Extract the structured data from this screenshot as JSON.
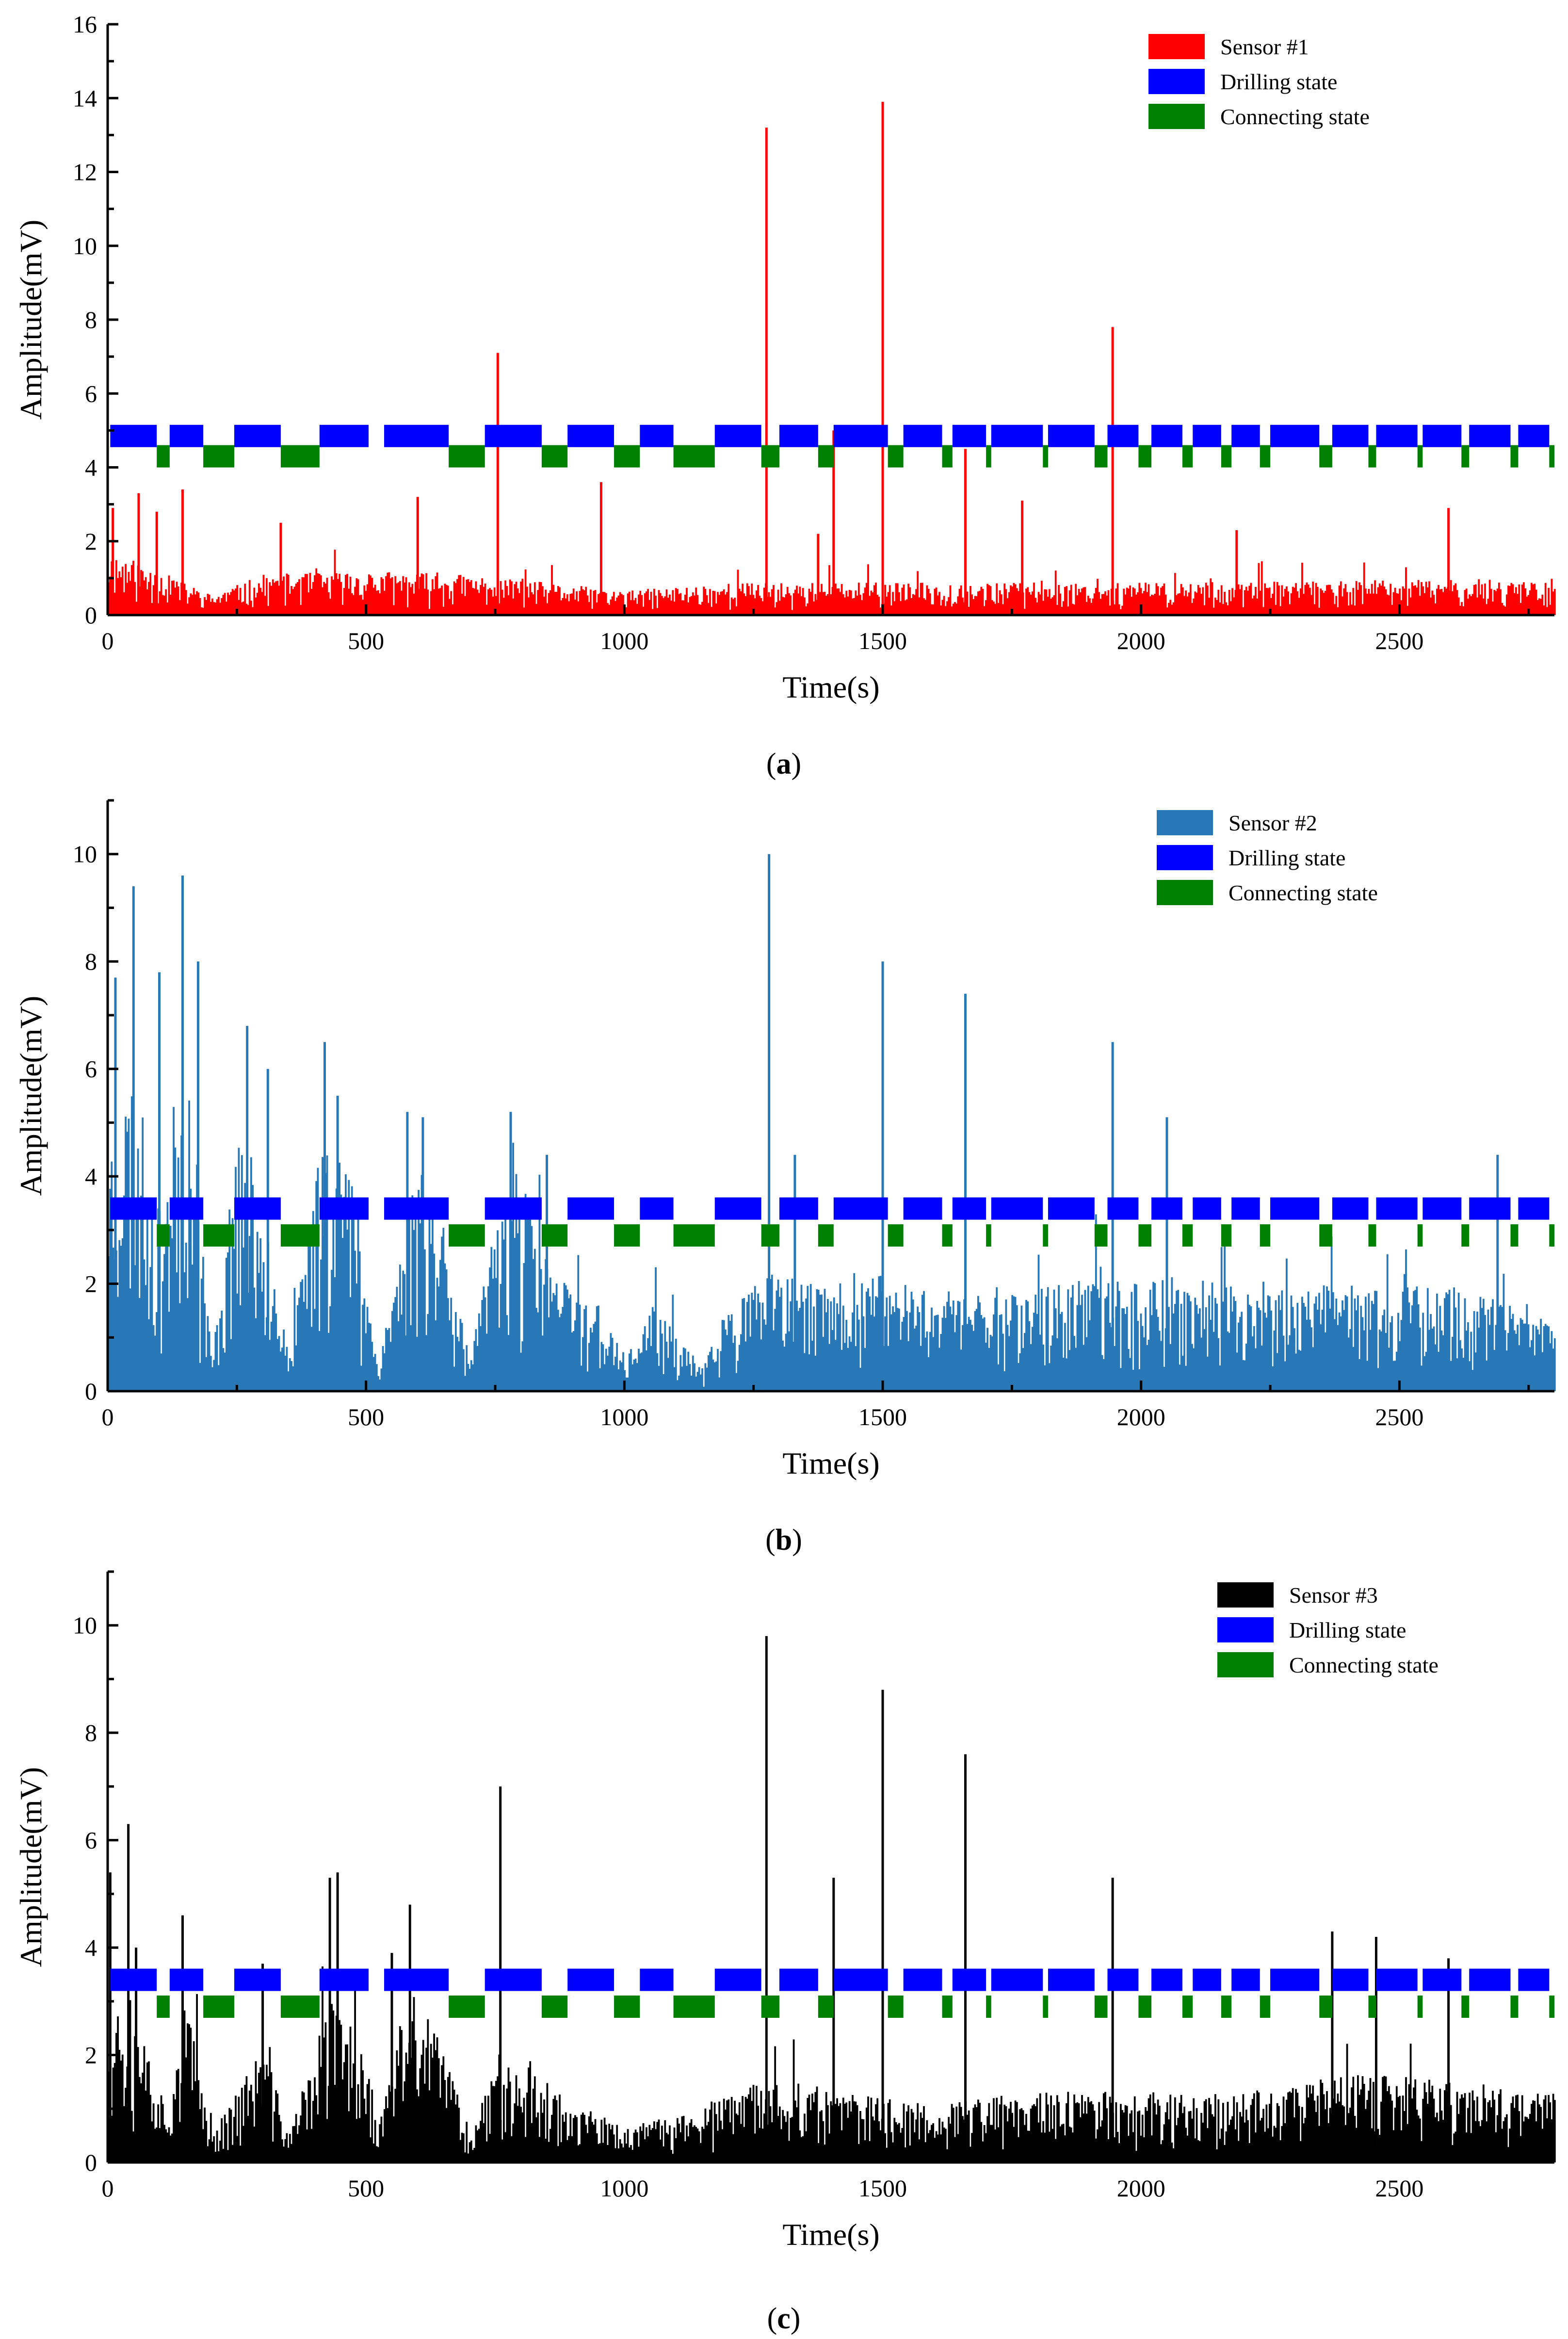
{
  "figure": {
    "panels": [
      {
        "label_open": "(",
        "label_letter": "a",
        "label_close": ")"
      },
      {
        "label_open": "(",
        "label_letter": "b",
        "label_close": ")"
      },
      {
        "label_open": "(",
        "label_letter": "c",
        "label_close": ")"
      }
    ]
  },
  "colors": {
    "sensor1": "#ff0000",
    "sensor2": "#2878b8",
    "sensor3": "#000000",
    "drilling": "#0000ff",
    "connecting": "#008000"
  },
  "chart_data": [
    {
      "type": "bar",
      "title": "",
      "xlabel": "Time(s)",
      "ylabel": "Amplitude(mV)",
      "xlim": [
        0,
        2800
      ],
      "ylim": [
        0,
        16
      ],
      "xticks": [
        0,
        500,
        1000,
        1500,
        2000,
        2500
      ],
      "yticks": [
        0,
        2,
        4,
        6,
        8,
        10,
        12,
        14,
        16
      ],
      "legend": [
        "Sensor #1",
        "Drilling state",
        "Connecting state"
      ],
      "legend_position": "top-right",
      "series": [
        {
          "name": "Sensor #1",
          "color": "#ff0000",
          "seed": 11,
          "baseline": [
            [
              0,
              1.6
            ],
            [
              80,
              1.2
            ],
            [
              200,
              0.5
            ],
            [
              300,
              1.0
            ],
            [
              500,
              1.1
            ],
            [
              700,
              1.0
            ],
            [
              1000,
              0.6
            ],
            [
              1200,
              0.8
            ],
            [
              1500,
              0.8
            ],
            [
              2000,
              0.8
            ],
            [
              2800,
              0.9
            ]
          ],
          "peaks": [
            [
              10,
              2.9
            ],
            [
              60,
              3.3
            ],
            [
              95,
              2.8
            ],
            [
              145,
              3.4
            ],
            [
              335,
              2.5
            ],
            [
              600,
              3.2
            ],
            [
              755,
              7.1
            ],
            [
              955,
              3.6
            ],
            [
              1275,
              13.2
            ],
            [
              1375,
              2.2
            ],
            [
              1405,
              5.0
            ],
            [
              1500,
              13.9
            ],
            [
              1660,
              4.5
            ],
            [
              1770,
              3.1
            ],
            [
              1945,
              7.8
            ],
            [
              2185,
              2.3
            ],
            [
              2595,
              2.9
            ]
          ]
        }
      ],
      "drilling_y": 4.85,
      "connecting_y": 4.3,
      "drilling_segments": [
        [
          5,
          95
        ],
        [
          120,
          185
        ],
        [
          245,
          335
        ],
        [
          410,
          505
        ],
        [
          535,
          660
        ],
        [
          730,
          840
        ],
        [
          890,
          980
        ],
        [
          1030,
          1095
        ],
        [
          1175,
          1265
        ],
        [
          1300,
          1375
        ],
        [
          1405,
          1510
        ],
        [
          1540,
          1615
        ],
        [
          1635,
          1700
        ],
        [
          1710,
          1810
        ],
        [
          1820,
          1910
        ],
        [
          1935,
          1995
        ],
        [
          2020,
          2080
        ],
        [
          2100,
          2155
        ],
        [
          2175,
          2230
        ],
        [
          2250,
          2345
        ],
        [
          2370,
          2440
        ],
        [
          2455,
          2535
        ],
        [
          2545,
          2620
        ],
        [
          2635,
          2715
        ],
        [
          2730,
          2790
        ]
      ],
      "connecting_segments": [
        [
          95,
          120
        ],
        [
          185,
          245
        ],
        [
          335,
          410
        ],
        [
          660,
          730
        ],
        [
          840,
          890
        ],
        [
          980,
          1030
        ],
        [
          1095,
          1175
        ],
        [
          1265,
          1300
        ],
        [
          1375,
          1405
        ],
        [
          1510,
          1540
        ],
        [
          1615,
          1635
        ],
        [
          1700,
          1710
        ],
        [
          1810,
          1820
        ],
        [
          1910,
          1935
        ],
        [
          1995,
          2020
        ],
        [
          2080,
          2100
        ],
        [
          2155,
          2175
        ],
        [
          2230,
          2250
        ],
        [
          2345,
          2370
        ],
        [
          2440,
          2455
        ],
        [
          2535,
          2545
        ],
        [
          2620,
          2635
        ],
        [
          2715,
          2730
        ],
        [
          2790,
          2800
        ]
      ]
    },
    {
      "type": "bar",
      "title": "",
      "xlabel": "Time(s)",
      "ylabel": "Amplitude(mV)",
      "xlim": [
        0,
        2800
      ],
      "ylim": [
        0,
        11
      ],
      "xticks": [
        0,
        500,
        1000,
        1500,
        2000,
        2500
      ],
      "yticks": [
        0,
        2,
        4,
        6,
        8,
        10
      ],
      "legend": [
        "Sensor #2",
        "Drilling state",
        "Connecting state"
      ],
      "legend_position": "top-right",
      "series": [
        {
          "name": "Sensor #2",
          "color": "#2878b8",
          "seed": 23,
          "baseline": [
            [
              0,
              4.5
            ],
            [
              50,
              5.5
            ],
            [
              100,
              3.0
            ],
            [
              150,
              6.5
            ],
            [
              200,
              0.5
            ],
            [
              250,
              4.5
            ],
            [
              300,
              3.5
            ],
            [
              350,
              0.5
            ],
            [
              420,
              5.0
            ],
            [
              480,
              3.5
            ],
            [
              520,
              0.5
            ],
            [
              600,
              4.0
            ],
            [
              650,
              3.0
            ],
            [
              700,
              0.5
            ],
            [
              780,
              4.5
            ],
            [
              820,
              3.0
            ],
            [
              870,
              2.0
            ],
            [
              950,
              1.5
            ],
            [
              1000,
              0.5
            ],
            [
              1050,
              1.5
            ],
            [
              1150,
              0.4
            ],
            [
              1200,
              1.5
            ],
            [
              1280,
              2.0
            ],
            [
              1400,
              1.8
            ],
            [
              1500,
              2.0
            ],
            [
              1600,
              1.8
            ],
            [
              1800,
              1.8
            ],
            [
              2000,
              2.0
            ],
            [
              2200,
              1.8
            ],
            [
              2400,
              1.8
            ],
            [
              2600,
              1.8
            ],
            [
              2800,
              1.2
            ]
          ],
          "peaks": [
            [
              15,
              7.7
            ],
            [
              50,
              9.4
            ],
            [
              100,
              7.8
            ],
            [
              145,
              9.6
            ],
            [
              175,
              8.0
            ],
            [
              270,
              6.8
            ],
            [
              310,
              6.0
            ],
            [
              420,
              6.5
            ],
            [
              445,
              5.5
            ],
            [
              580,
              5.2
            ],
            [
              610,
              5.1
            ],
            [
              780,
              5.2
            ],
            [
              850,
              4.4
            ],
            [
              1280,
              10.0
            ],
            [
              1330,
              4.4
            ],
            [
              1500,
              8.0
            ],
            [
              1660,
              7.4
            ],
            [
              1945,
              6.5
            ],
            [
              2050,
              5.1
            ],
            [
              2690,
              4.4
            ]
          ]
        }
      ],
      "drilling_y": 3.4,
      "connecting_y": 2.9,
      "drilling_segments": [
        [
          5,
          95
        ],
        [
          120,
          185
        ],
        [
          245,
          335
        ],
        [
          410,
          505
        ],
        [
          535,
          660
        ],
        [
          730,
          840
        ],
        [
          890,
          980
        ],
        [
          1030,
          1095
        ],
        [
          1175,
          1265
        ],
        [
          1300,
          1375
        ],
        [
          1405,
          1510
        ],
        [
          1540,
          1615
        ],
        [
          1635,
          1700
        ],
        [
          1710,
          1810
        ],
        [
          1820,
          1910
        ],
        [
          1935,
          1995
        ],
        [
          2020,
          2080
        ],
        [
          2100,
          2155
        ],
        [
          2175,
          2230
        ],
        [
          2250,
          2345
        ],
        [
          2370,
          2440
        ],
        [
          2455,
          2535
        ],
        [
          2545,
          2620
        ],
        [
          2635,
          2715
        ],
        [
          2730,
          2790
        ]
      ],
      "connecting_segments": [
        [
          95,
          120
        ],
        [
          185,
          245
        ],
        [
          335,
          410
        ],
        [
          660,
          730
        ],
        [
          840,
          890
        ],
        [
          980,
          1030
        ],
        [
          1095,
          1175
        ],
        [
          1265,
          1300
        ],
        [
          1375,
          1405
        ],
        [
          1510,
          1540
        ],
        [
          1615,
          1635
        ],
        [
          1700,
          1710
        ],
        [
          1810,
          1820
        ],
        [
          1910,
          1935
        ],
        [
          1995,
          2020
        ],
        [
          2080,
          2100
        ],
        [
          2155,
          2175
        ],
        [
          2230,
          2250
        ],
        [
          2345,
          2370
        ],
        [
          2440,
          2455
        ],
        [
          2535,
          2545
        ],
        [
          2620,
          2635
        ],
        [
          2715,
          2730
        ],
        [
          2790,
          2800
        ]
      ]
    },
    {
      "type": "bar",
      "title": "",
      "xlabel": "Time(s)",
      "ylabel": "Amplitude(mV)",
      "xlim": [
        0,
        2800
      ],
      "ylim": [
        0,
        11
      ],
      "xticks": [
        0,
        500,
        1000,
        1500,
        2000,
        2500
      ],
      "yticks": [
        0,
        2,
        4,
        6,
        8,
        10
      ],
      "legend": [
        "Sensor #3",
        "Drilling state",
        "Connecting state"
      ],
      "legend_position": "top-right",
      "series": [
        {
          "name": "Sensor #3",
          "color": "#000000",
          "seed": 37,
          "baseline": [
            [
              0,
              3.0
            ],
            [
              60,
              2.5
            ],
            [
              110,
              1.0
            ],
            [
              150,
              2.8
            ],
            [
              200,
              0.5
            ],
            [
              300,
              2.0
            ],
            [
              350,
              0.5
            ],
            [
              430,
              2.8
            ],
            [
              500,
              2.0
            ],
            [
              520,
              0.5
            ],
            [
              580,
              3.0
            ],
            [
              650,
              2.0
            ],
            [
              700,
              0.5
            ],
            [
              760,
              2.0
            ],
            [
              900,
              1.0
            ],
            [
              1000,
              0.6
            ],
            [
              1100,
              0.8
            ],
            [
              1300,
              1.5
            ],
            [
              1400,
              1.2
            ],
            [
              1600,
              1.0
            ],
            [
              1800,
              1.2
            ],
            [
              2000,
              1.2
            ],
            [
              2200,
              1.2
            ],
            [
              2400,
              1.5
            ],
            [
              2600,
              1.4
            ],
            [
              2800,
              1.2
            ]
          ],
          "peaks": [
            [
              5,
              5.4
            ],
            [
              40,
              6.3
            ],
            [
              55,
              4.0
            ],
            [
              145,
              4.6
            ],
            [
              300,
              3.7
            ],
            [
              430,
              5.3
            ],
            [
              445,
              5.4
            ],
            [
              550,
              3.9
            ],
            [
              585,
              4.8
            ],
            [
              760,
              7.0
            ],
            [
              1275,
              9.8
            ],
            [
              1405,
              5.3
            ],
            [
              1500,
              8.8
            ],
            [
              1660,
              7.6
            ],
            [
              1945,
              5.3
            ],
            [
              2370,
              4.3
            ],
            [
              2455,
              4.2
            ],
            [
              2595,
              3.8
            ]
          ]
        }
      ],
      "drilling_y": 3.4,
      "connecting_y": 2.9,
      "drilling_segments": [
        [
          5,
          95
        ],
        [
          120,
          185
        ],
        [
          245,
          335
        ],
        [
          410,
          505
        ],
        [
          535,
          660
        ],
        [
          730,
          840
        ],
        [
          890,
          980
        ],
        [
          1030,
          1095
        ],
        [
          1175,
          1265
        ],
        [
          1300,
          1375
        ],
        [
          1405,
          1510
        ],
        [
          1540,
          1615
        ],
        [
          1635,
          1700
        ],
        [
          1710,
          1810
        ],
        [
          1820,
          1910
        ],
        [
          1935,
          1995
        ],
        [
          2020,
          2080
        ],
        [
          2100,
          2155
        ],
        [
          2175,
          2230
        ],
        [
          2250,
          2345
        ],
        [
          2370,
          2440
        ],
        [
          2455,
          2535
        ],
        [
          2545,
          2620
        ],
        [
          2635,
          2715
        ],
        [
          2730,
          2790
        ]
      ],
      "connecting_segments": [
        [
          95,
          120
        ],
        [
          185,
          245
        ],
        [
          335,
          410
        ],
        [
          660,
          730
        ],
        [
          840,
          890
        ],
        [
          980,
          1030
        ],
        [
          1095,
          1175
        ],
        [
          1265,
          1300
        ],
        [
          1375,
          1405
        ],
        [
          1510,
          1540
        ],
        [
          1615,
          1635
        ],
        [
          1700,
          1710
        ],
        [
          1810,
          1820
        ],
        [
          1910,
          1935
        ],
        [
          1995,
          2020
        ],
        [
          2080,
          2100
        ],
        [
          2155,
          2175
        ],
        [
          2230,
          2250
        ],
        [
          2345,
          2370
        ],
        [
          2440,
          2455
        ],
        [
          2535,
          2545
        ],
        [
          2620,
          2635
        ],
        [
          2715,
          2730
        ],
        [
          2790,
          2800
        ]
      ]
    }
  ]
}
